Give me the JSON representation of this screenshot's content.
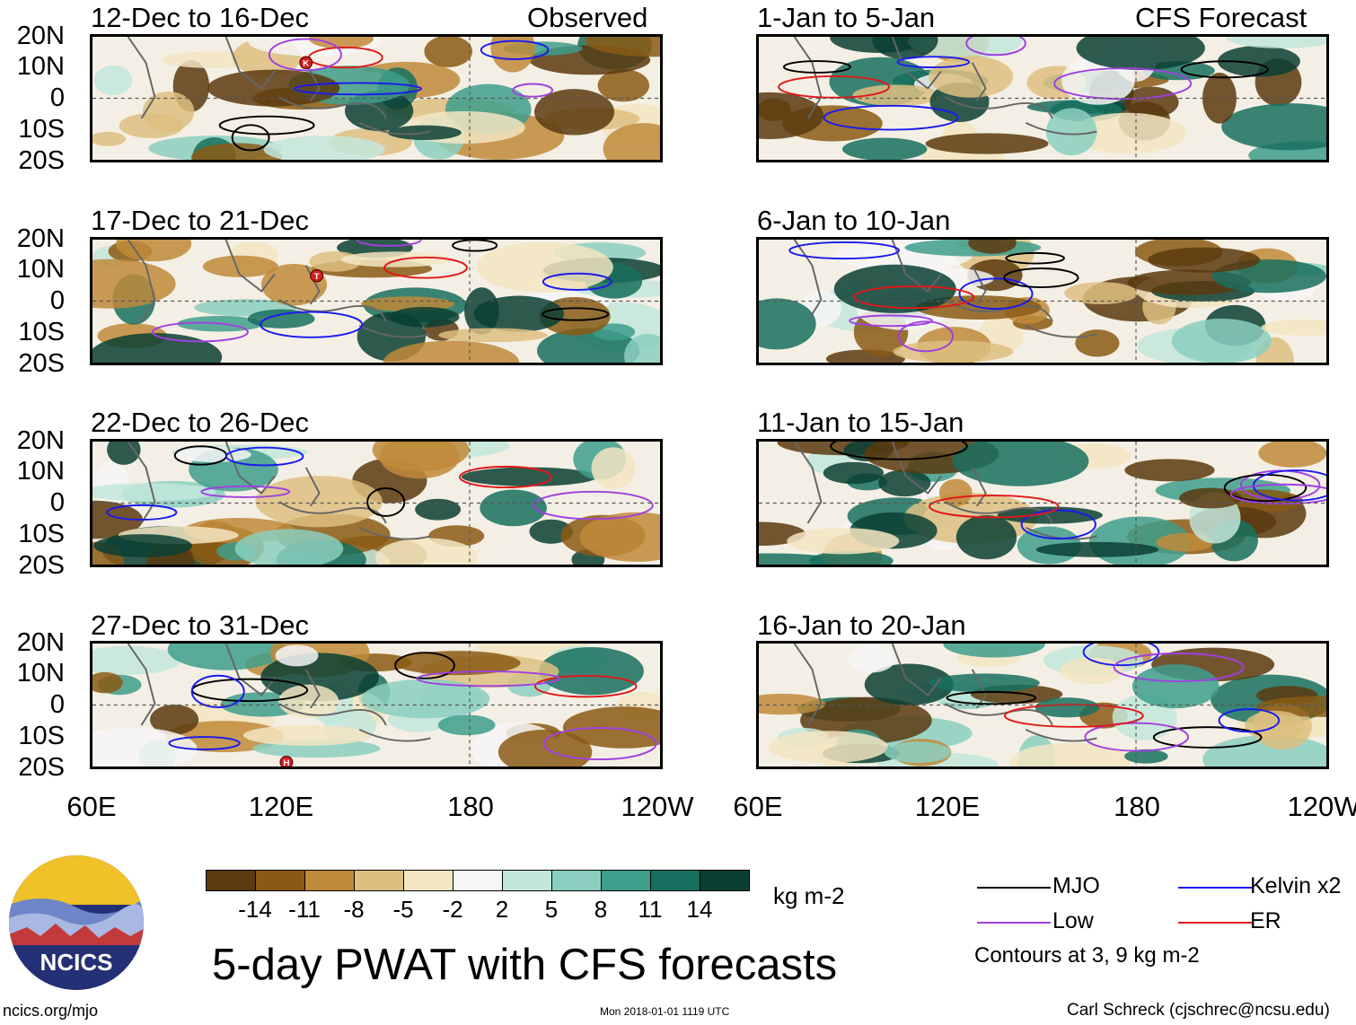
{
  "panels_left_header": "Observed",
  "panels_right_header": "CFS Forecast",
  "left_panels": [
    {
      "title": "12-Dec to 16-Dec",
      "marker": "K"
    },
    {
      "title": "17-Dec to 21-Dec",
      "marker": "T"
    },
    {
      "title": "22-Dec to 26-Dec",
      "marker": ""
    },
    {
      "title": "27-Dec to 31-Dec",
      "marker": "H"
    }
  ],
  "right_panels": [
    {
      "title": "1-Jan to 5-Jan"
    },
    {
      "title": "6-Jan to 10-Jan"
    },
    {
      "title": "11-Jan to 15-Jan"
    },
    {
      "title": "16-Jan to 20-Jan"
    }
  ],
  "y_axis_labels": [
    "20N",
    "10N",
    "0",
    "10S",
    "20S"
  ],
  "x_axis_labels": [
    "60E",
    "120E",
    "180",
    "120W"
  ],
  "colorbar": {
    "colors": [
      "#5a3a0e",
      "#8a5a14",
      "#bf8a3a",
      "#ddbf80",
      "#f3e5c2",
      "#f6f6f6",
      "#c3e6dc",
      "#8bcfc0",
      "#3e9e8c",
      "#17705f",
      "#0b3f34"
    ],
    "labels": [
      "-14",
      "-11",
      "-8",
      "-5",
      "-2",
      "2",
      "5",
      "8",
      "11",
      "14"
    ],
    "unit": "kg m-2"
  },
  "title": "5-day PWAT with CFS forecasts",
  "logo_text": "NCICS",
  "legend": {
    "items": [
      {
        "label": "MJO",
        "color": "#000000"
      },
      {
        "label": "Kelvin x2",
        "color": "#1a1aee"
      },
      {
        "label": "Low",
        "color": "#a040e0"
      },
      {
        "label": "ER",
        "color": "#e01818"
      }
    ],
    "note": "Contours at 3, 9 kg m-2"
  },
  "footer": {
    "site": "ncics.org/mjo",
    "timestamp": "Mon 2018-01-01 1119 UTC",
    "credit": "Carl Schreck (cjschrec@ncsu.edu)"
  }
}
